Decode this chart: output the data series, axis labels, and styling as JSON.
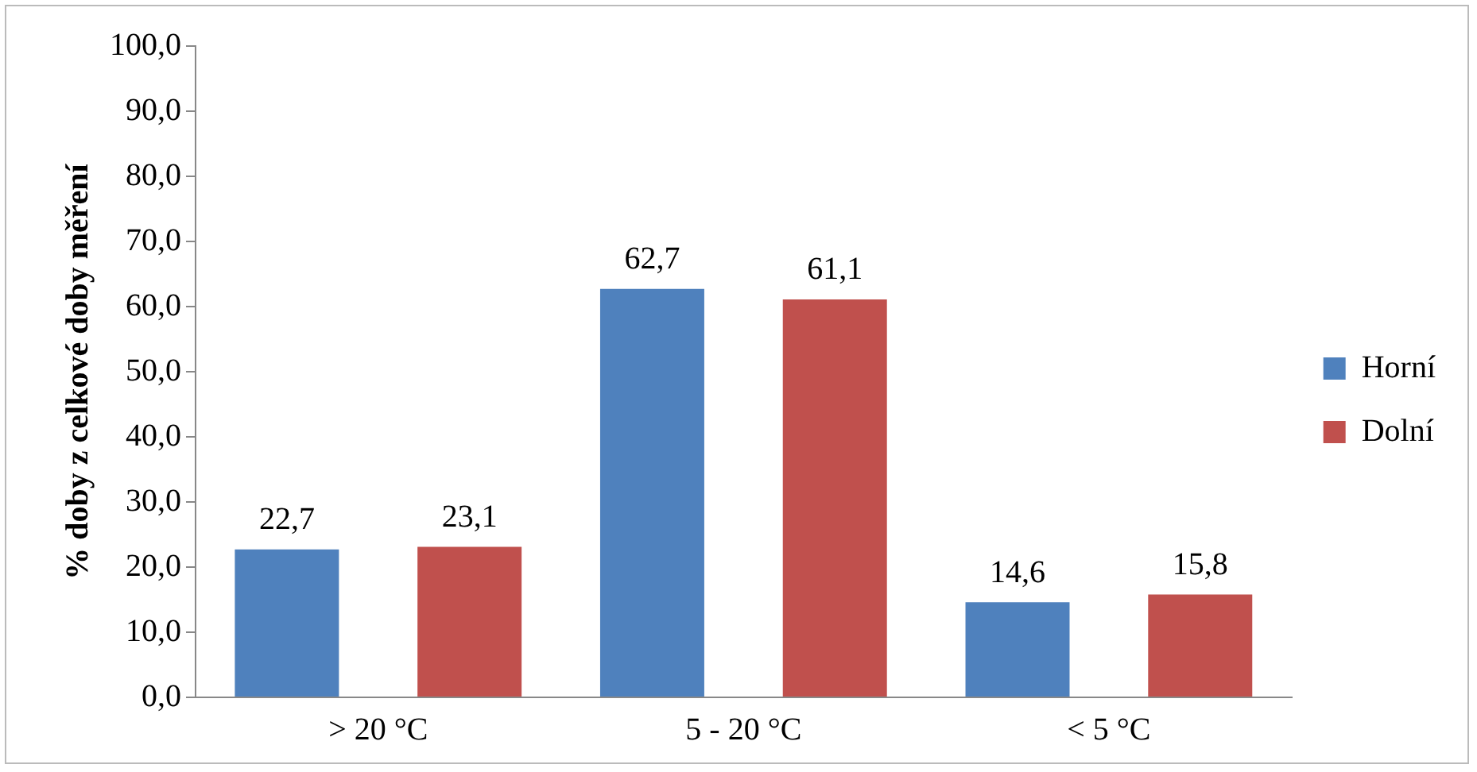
{
  "chart_data": {
    "type": "bar",
    "ylabel": "% doby z celkové doby měření",
    "categories": [
      "> 20 °C",
      "5 - 20 °C",
      "< 5 °C"
    ],
    "series": [
      {
        "name": "Horní",
        "color": "#4f81bd",
        "values": [
          22.7,
          62.7,
          14.6
        ],
        "value_labels": [
          "22,7",
          "62,7",
          "14,6"
        ]
      },
      {
        "name": "Dolní",
        "color": "#c0504d",
        "values": [
          23.1,
          61.1,
          15.8
        ],
        "value_labels": [
          "23,1",
          "61,1",
          "15,8"
        ]
      }
    ],
    "ylim": [
      0,
      100
    ],
    "yticks": [
      {
        "value": 0,
        "label": "0,0"
      },
      {
        "value": 10,
        "label": "10,0"
      },
      {
        "value": 20,
        "label": "20,0"
      },
      {
        "value": 30,
        "label": "30,0"
      },
      {
        "value": 40,
        "label": "40,0"
      },
      {
        "value": 50,
        "label": "50,0"
      },
      {
        "value": 60,
        "label": "60,0"
      },
      {
        "value": 70,
        "label": "70,0"
      },
      {
        "value": 80,
        "label": "80,0"
      },
      {
        "value": 90,
        "label": "90,0"
      },
      {
        "value": 100,
        "label": "100,0"
      }
    ],
    "grid": false,
    "legend": "right"
  }
}
